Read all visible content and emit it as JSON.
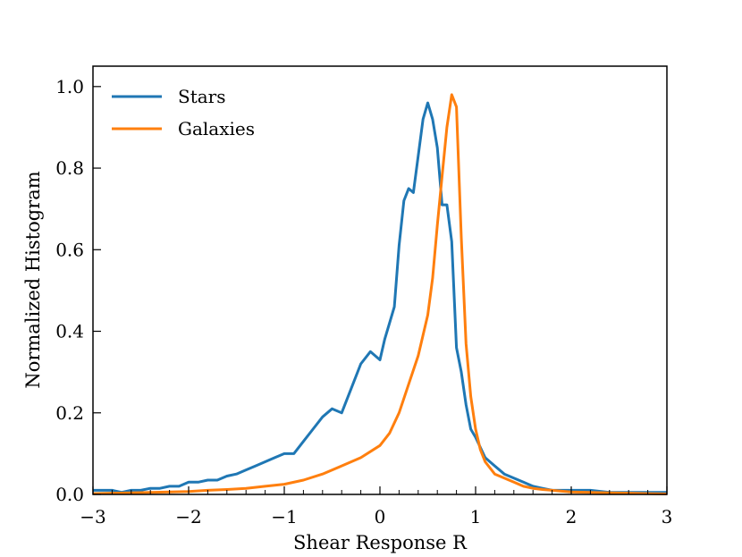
{
  "chart_data": {
    "type": "line",
    "title": "",
    "xlabel": "Shear Response R",
    "ylabel": "Normalized Histogram",
    "xlim": [
      -3,
      3
    ],
    "ylim": [
      0,
      1.05
    ],
    "xticks": [
      -3,
      -2,
      -1,
      0,
      1,
      2,
      3
    ],
    "xtick_labels": [
      "−3",
      "−2",
      "−1",
      "0",
      "1",
      "2",
      "3"
    ],
    "yticks": [
      0.0,
      0.2,
      0.4,
      0.6,
      0.8,
      1.0
    ],
    "ytick_labels": [
      "0.0",
      "0.2",
      "0.4",
      "0.6",
      "0.8",
      "1.0"
    ],
    "x_minor_step": 0.2,
    "grid": false,
    "legend_position": "upper-left",
    "series": [
      {
        "name": "Stars",
        "color": "#1f77b4",
        "x": [
          -3.0,
          -2.9,
          -2.8,
          -2.7,
          -2.6,
          -2.5,
          -2.4,
          -2.3,
          -2.2,
          -2.1,
          -2.0,
          -1.9,
          -1.8,
          -1.7,
          -1.6,
          -1.5,
          -1.4,
          -1.3,
          -1.2,
          -1.1,
          -1.0,
          -0.9,
          -0.8,
          -0.7,
          -0.6,
          -0.5,
          -0.4,
          -0.3,
          -0.2,
          -0.1,
          0.0,
          0.05,
          0.1,
          0.15,
          0.2,
          0.25,
          0.3,
          0.35,
          0.4,
          0.45,
          0.5,
          0.55,
          0.6,
          0.65,
          0.7,
          0.75,
          0.8,
          0.85,
          0.9,
          0.95,
          1.0,
          1.1,
          1.2,
          1.3,
          1.4,
          1.5,
          1.6,
          1.7,
          1.8,
          1.9,
          2.0,
          2.2,
          2.4,
          2.6,
          2.8,
          3.0
        ],
        "y": [
          0.01,
          0.01,
          0.01,
          0.005,
          0.01,
          0.01,
          0.015,
          0.015,
          0.02,
          0.02,
          0.03,
          0.03,
          0.035,
          0.035,
          0.045,
          0.05,
          0.06,
          0.07,
          0.08,
          0.09,
          0.1,
          0.1,
          0.13,
          0.16,
          0.19,
          0.21,
          0.2,
          0.26,
          0.32,
          0.35,
          0.33,
          0.38,
          0.42,
          0.46,
          0.61,
          0.72,
          0.75,
          0.74,
          0.83,
          0.92,
          0.96,
          0.92,
          0.85,
          0.71,
          0.71,
          0.62,
          0.36,
          0.3,
          0.22,
          0.16,
          0.14,
          0.09,
          0.07,
          0.05,
          0.04,
          0.03,
          0.02,
          0.015,
          0.01,
          0.01,
          0.01,
          0.01,
          0.005,
          0.005,
          0.005,
          0.005
        ]
      },
      {
        "name": "Galaxies",
        "color": "#ff7f0e",
        "x": [
          -3.0,
          -2.8,
          -2.6,
          -2.4,
          -2.2,
          -2.0,
          -1.8,
          -1.6,
          -1.4,
          -1.2,
          -1.0,
          -0.8,
          -0.6,
          -0.4,
          -0.2,
          0.0,
          0.1,
          0.2,
          0.3,
          0.4,
          0.5,
          0.55,
          0.6,
          0.65,
          0.7,
          0.75,
          0.8,
          0.85,
          0.9,
          0.95,
          1.0,
          1.05,
          1.1,
          1.2,
          1.3,
          1.4,
          1.5,
          1.6,
          1.7,
          1.8,
          1.9,
          2.0,
          2.2,
          2.4,
          2.6,
          2.8,
          3.0
        ],
        "y": [
          0.002,
          0.003,
          0.004,
          0.005,
          0.006,
          0.007,
          0.01,
          0.012,
          0.015,
          0.02,
          0.025,
          0.035,
          0.05,
          0.07,
          0.09,
          0.12,
          0.15,
          0.2,
          0.27,
          0.34,
          0.44,
          0.53,
          0.66,
          0.78,
          0.9,
          0.98,
          0.95,
          0.63,
          0.37,
          0.24,
          0.16,
          0.11,
          0.08,
          0.05,
          0.04,
          0.03,
          0.02,
          0.015,
          0.012,
          0.01,
          0.008,
          0.006,
          0.005,
          0.004,
          0.003,
          0.002,
          0.001
        ]
      }
    ]
  }
}
